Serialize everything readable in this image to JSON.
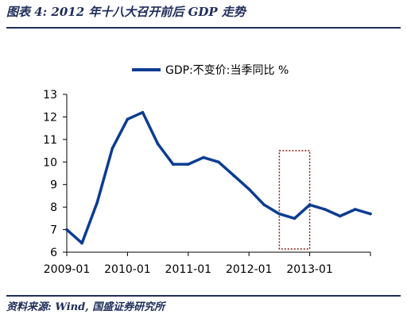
{
  "figure": {
    "title": "图表 4:  2012 年十八大召开前后 GDP 走势",
    "source": "资料来源:  Wind,  国盛证券研究所"
  },
  "colors": {
    "line": "#0b3d91",
    "axis": "#000000",
    "highlight_box": "#8b1a1a",
    "header_text": "#1f2d5a"
  },
  "chart_data": {
    "type": "line",
    "title": "",
    "xlabel": "",
    "ylabel": "",
    "ylim": [
      6,
      13
    ],
    "yticks": [
      6,
      7,
      8,
      9,
      10,
      11,
      12,
      13
    ],
    "x_tick_labels": [
      "2009-01",
      "2010-01",
      "2011-01",
      "2012-01",
      "2013-01"
    ],
    "x_tick_dates": [
      "2009-01",
      "2010-01",
      "2011-01",
      "2012-01",
      "2013-01"
    ],
    "xlim": [
      "2009-01",
      "2014-01"
    ],
    "legend_position": "top",
    "grid": false,
    "series": [
      {
        "name": "GDP:不变价:当季同比  %",
        "points": [
          {
            "x": "2009-01",
            "y": 7.0
          },
          {
            "x": "2009-04",
            "y": 6.4
          },
          {
            "x": "2009-07",
            "y": 8.2
          },
          {
            "x": "2009-10",
            "y": 10.6
          },
          {
            "x": "2010-01",
            "y": 11.9
          },
          {
            "x": "2010-04",
            "y": 12.2
          },
          {
            "x": "2010-07",
            "y": 10.8
          },
          {
            "x": "2010-10",
            "y": 9.9
          },
          {
            "x": "2011-01",
            "y": 9.9
          },
          {
            "x": "2011-04",
            "y": 10.2
          },
          {
            "x": "2011-07",
            "y": 10.0
          },
          {
            "x": "2011-10",
            "y": 9.4
          },
          {
            "x": "2012-01",
            "y": 8.8
          },
          {
            "x": "2012-04",
            "y": 8.1
          },
          {
            "x": "2012-07",
            "y": 7.7
          },
          {
            "x": "2012-10",
            "y": 7.5
          },
          {
            "x": "2013-01",
            "y": 8.1
          },
          {
            "x": "2013-04",
            "y": 7.9
          },
          {
            "x": "2013-07",
            "y": 7.6
          },
          {
            "x": "2013-10",
            "y": 7.9
          },
          {
            "x": "2014-01",
            "y": 7.7
          }
        ]
      }
    ],
    "highlight_range": {
      "x_start": "2012-07",
      "x_end": "2013-01"
    }
  }
}
